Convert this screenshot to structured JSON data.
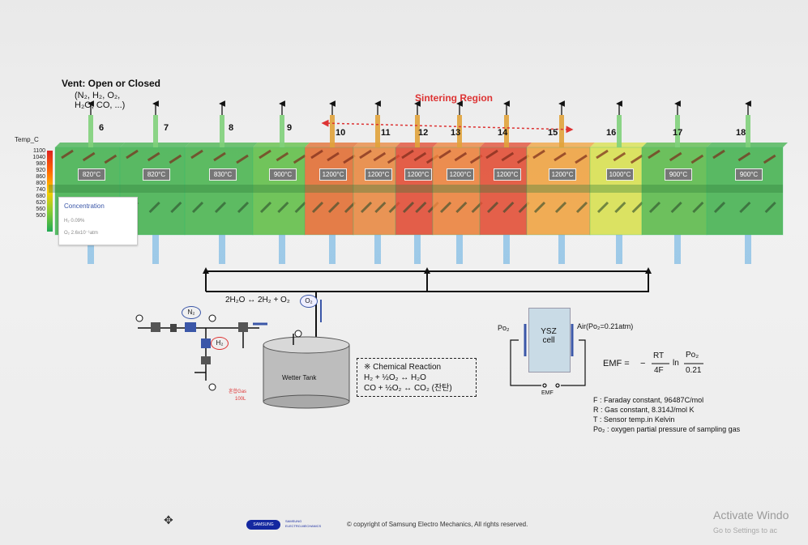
{
  "vent": {
    "title": "Vent: Open or Closed",
    "gases_line1": "(N₂, H₂, O₂,",
    "gases_line2": "H₂O, CO, ...)"
  },
  "sintering_region": "Sintering Region",
  "scale": {
    "title": "Temp_C",
    "labels": [
      "1100",
      "1040",
      "980",
      "920",
      "860",
      "800",
      "740",
      "680",
      "620",
      "560",
      "500"
    ]
  },
  "zones": [
    {
      "num": "6",
      "temp": "820°C",
      "color": "#3fb04b"
    },
    {
      "num": "7",
      "temp": "820°C",
      "color": "#3fb04b"
    },
    {
      "num": "8",
      "temp": "830°C",
      "color": "#44b24a"
    },
    {
      "num": "9",
      "temp": "900°C",
      "color": "#5cbd42"
    },
    {
      "num": "10",
      "temp": "1200°C",
      "color": "#e2692b"
    },
    {
      "num": "11",
      "temp": "1200°C",
      "color": "#e8843a"
    },
    {
      "num": "12",
      "temp": "1200°C",
      "color": "#e1452c"
    },
    {
      "num": "13",
      "temp": "1200°C",
      "color": "#ec7d35"
    },
    {
      "num": "14",
      "temp": "1200°C",
      "color": "#e2472d"
    },
    {
      "num": "15",
      "temp": "1200°C",
      "color": "#f0a03a"
    },
    {
      "num": "16",
      "temp": "1000°C",
      "color": "#d8e04a"
    },
    {
      "num": "17",
      "temp": "900°C",
      "color": "#56b844"
    },
    {
      "num": "18",
      "temp": "900°C",
      "color": "#3fb04b"
    }
  ],
  "concentration": {
    "title": "Concentration",
    "line1": "H₂ 0.09%",
    "line2": "O₂ 2.6x10⁻¹atm"
  },
  "reaction_line": "2H₂O ↔ 2H₂ + O₂",
  "gas_labels": {
    "n2": "N₂",
    "h2": "H₂",
    "o2": "O₂"
  },
  "wetter_tank": "Wetter Tank",
  "mixed_gas": "혼합Gas",
  "mixed_gas_amount": "100L",
  "chem_reaction": {
    "title": "※ Chemical Reaction",
    "line1": "H₂ + ½O₂ ↔ H₂O",
    "line2": "CO + ½O₂ ↔ CO₂ (잔탄)"
  },
  "sensor": {
    "po2": "Po₂",
    "ysz_line1": "YSZ",
    "ysz_line2": "cell",
    "air": "Air(Po₂=0.21atm)",
    "emf": "EMF"
  },
  "emf_equation": {
    "lhs": "EMF =",
    "minus": "−",
    "num": "RT",
    "den": "4F",
    "ln": "ln",
    "num2": "Po₂",
    "den2": "0.21"
  },
  "constants": [
    "F : Faraday constant, 96487C/mol",
    "R : Gas constant, 8.314J/mol K",
    "T : Sensor temp.in Kelvin",
    "Po₂ : oxygen partial pressure of sampling gas"
  ],
  "footer": {
    "logo": "SAMSUNG",
    "sub1": "SAMSUNG",
    "sub2": "ELECTRO-MECHANICS",
    "copyright": "© copyright of Samsung Electro Mechanics, All rights reserved."
  },
  "watermark": {
    "line1": "Activate Windo",
    "line2": "Go to Settings to ac"
  }
}
